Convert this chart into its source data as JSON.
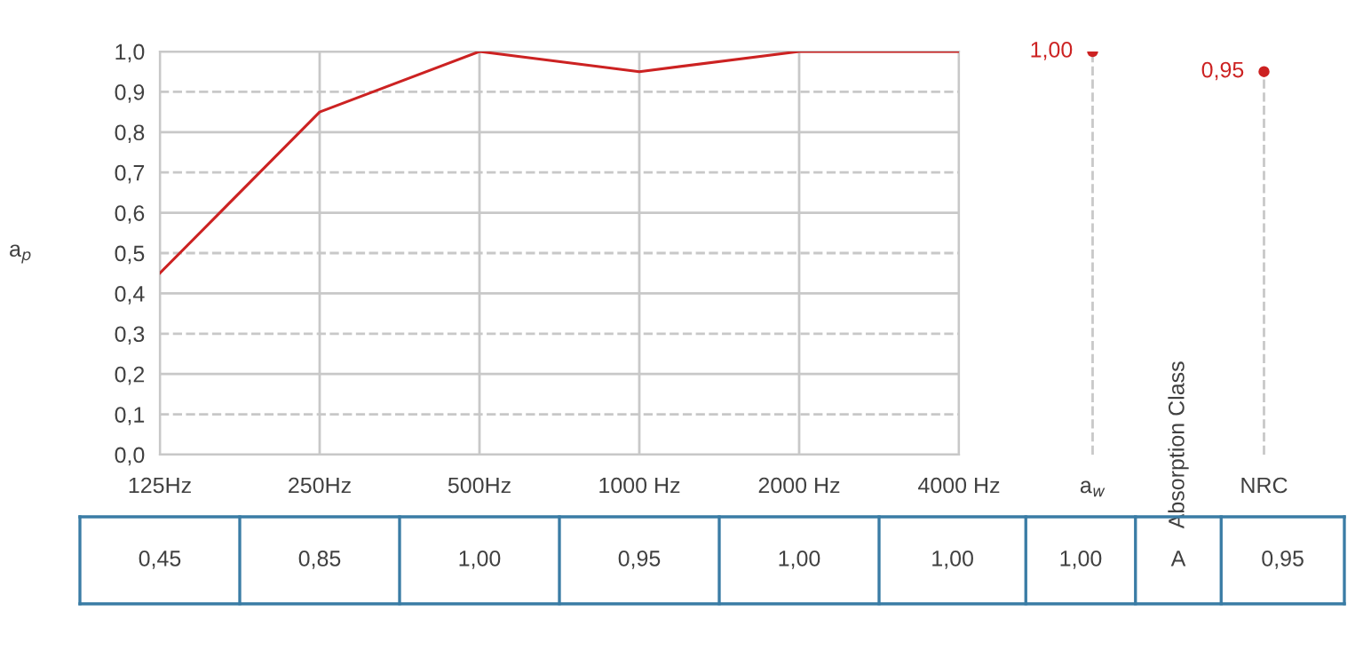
{
  "chart_data": [
    {
      "type": "line",
      "ylabel": "a$_{p}$",
      "categories": [
        "125Hz",
        "250Hz",
        "500Hz",
        "1000 Hz",
        "2000 Hz",
        "4000 Hz"
      ],
      "series": [
        {
          "color": "#cc2222",
          "values": [
            0.45,
            0.85,
            1.0,
            0.95,
            1.0,
            1.0
          ],
          "value_labels": [
            "0,45",
            "0,85",
            "1,00",
            "0,95",
            "1,00",
            "1,00"
          ]
        }
      ],
      "ylim": [
        0,
        1
      ],
      "yticks": [
        {
          "value": 0,
          "label": "0,0"
        },
        {
          "value": 0.1,
          "label": "0,1"
        },
        {
          "value": 0.2,
          "label": "0,2"
        },
        {
          "value": 0.3,
          "label": "0,3"
        },
        {
          "value": 0.4,
          "label": "0,4"
        },
        {
          "value": 0.5,
          "label": "0,5"
        },
        {
          "value": 0.6,
          "label": "0,6"
        },
        {
          "value": 0.7,
          "label": "0,7"
        },
        {
          "value": 0.8,
          "label": "0,8"
        },
        {
          "value": 0.9,
          "label": "0,9"
        },
        {
          "value": 1.0,
          "label": "1,0"
        }
      ],
      "grid": true,
      "line_style": "solid"
    },
    {
      "type": "lollipop",
      "categories": [
        "a$_{w}$",
        "Absorption Class",
        "NRC"
      ],
      "series": [
        {
          "color": "#cc2222",
          "values": [
            1.0,
            null,
            0.95
          ],
          "value_labels": [
            "1,00",
            null,
            "0,95"
          ]
        }
      ],
      "ylim": [
        0,
        1
      ],
      "tick_labels": "x",
      "line_style": "dashed",
      "marker": "circle",
      "annotations": [
        "A"
      ]
    }
  ]
}
